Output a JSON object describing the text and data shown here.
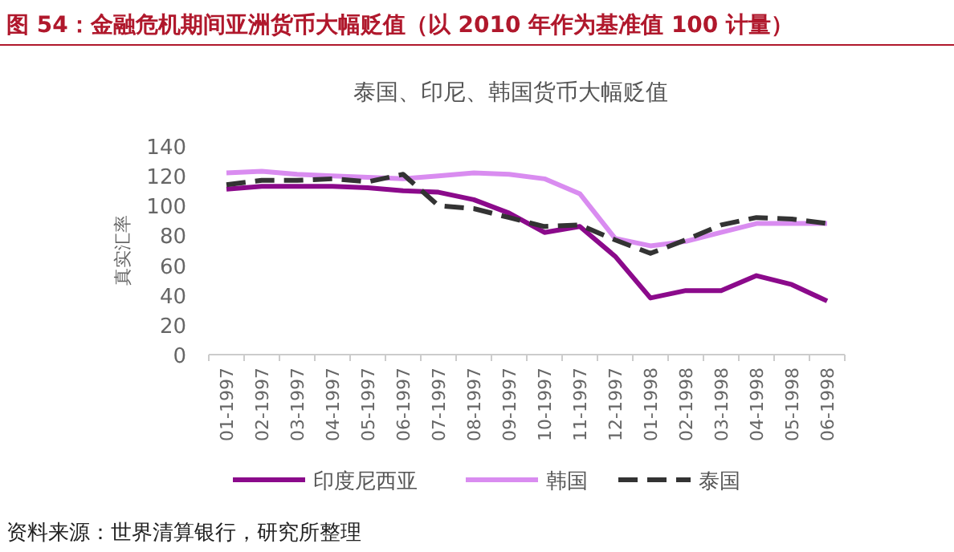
{
  "chart_data": {
    "type": "line",
    "title": "图 54：金融危机期间亚洲货币大幅贬值（以 2010 年作为基准值 100 计量）",
    "subtitle": "泰国、印尼、韩国货币大幅贬值",
    "ylabel": "真实汇率",
    "categories": [
      "01-1997",
      "02-1997",
      "03-1997",
      "04-1997",
      "05-1997",
      "06-1997",
      "07-1997",
      "08-1997",
      "09-1997",
      "10-1997",
      "11-1997",
      "12-1997",
      "01-1998",
      "02-1998",
      "03-1998",
      "04-1998",
      "05-1998",
      "06-1998"
    ],
    "series": [
      {
        "name": "印度尼西亚",
        "color": "#8b0a8b",
        "line_style": "solid",
        "values": [
          111,
          113,
          113,
          113,
          112,
          110,
          109,
          104,
          95,
          82,
          86,
          66,
          38,
          43,
          43,
          53,
          47,
          36
        ]
      },
      {
        "name": "韩国",
        "color": "#d98cf0",
        "line_style": "solid",
        "values": [
          122,
          123,
          121,
          120,
          119,
          118,
          120,
          122,
          121,
          118,
          108,
          78,
          73,
          76,
          82,
          88,
          88,
          88
        ]
      },
      {
        "name": "泰国",
        "color": "#333333",
        "line_style": "dashed",
        "values": [
          114,
          117,
          117,
          118,
          116,
          121,
          100,
          98,
          92,
          86,
          87,
          77,
          68,
          77,
          87,
          92,
          91,
          88
        ]
      }
    ],
    "ylim": [
      0,
      140
    ],
    "yticks": [
      0,
      20,
      40,
      60,
      80,
      100,
      120,
      140
    ],
    "grid": false,
    "legend": "bottom",
    "marker": "none",
    "annotations": [
      "资料来源：世界清算银行，研究所整理"
    ]
  }
}
